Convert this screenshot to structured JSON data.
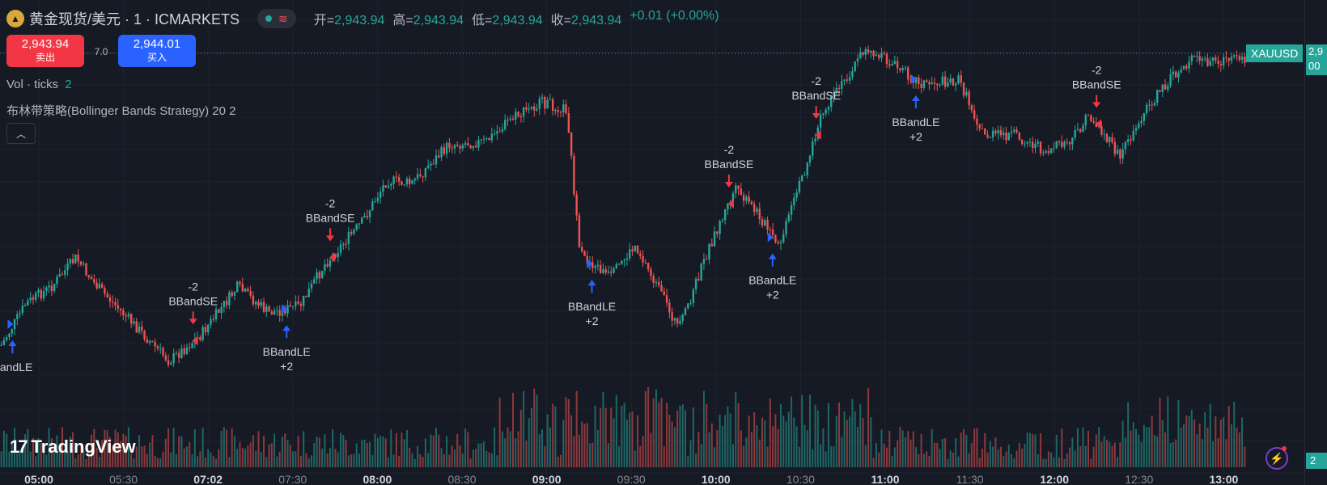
{
  "header": {
    "symbol_icon": "gold-bars-icon",
    "symbol_title": "黄金现货/美元 · 1 · ICMARKETS",
    "status_icons": [
      "market-open-dot-icon",
      "wave-icon"
    ],
    "ohlc": [
      {
        "label": "开=",
        "value": "2,943.94"
      },
      {
        "label": "高=",
        "value": "2,943.94"
      },
      {
        "label": "低=",
        "value": "2,943.94"
      },
      {
        "label": "收=",
        "value": "2,943.94"
      }
    ],
    "change": "+0.01 (+0.00%)"
  },
  "trade": {
    "sell_price": "2,943.94",
    "sell_label": "卖出",
    "spread": "7.0",
    "buy_price": "2,944.01",
    "buy_label": "买入"
  },
  "indicators": {
    "volume_label": "Vol · ticks",
    "volume_value": "2",
    "strategy_label": "布林带策略(Bollinger Bands Strategy) 20 2",
    "collapse_icon": "chevron-up-icon"
  },
  "price_axis": {
    "last_symbol": "XAUUSD",
    "last_price_fragment_1": "2,9",
    "last_price_fragment_2": "00",
    "tick_label_fragment": "2,",
    "volume_tag": "2"
  },
  "branding": {
    "logo_text": "TradingView",
    "logo_mark": "17",
    "bolt_icon": "lightning-icon"
  },
  "colors": {
    "up": "#26a69a",
    "down": "#ef5350",
    "background": "#161a25",
    "long_marker": "#2962ff",
    "short_marker": "#f23645"
  },
  "chart_data": {
    "type": "candlestick",
    "timeframe": "1",
    "x_ticks": [
      "05:00",
      "05:30",
      "07:02",
      "07:30",
      "08:00",
      "08:30",
      "09:00",
      "09:30",
      "10:00",
      "10:30",
      "11:00",
      "11:30",
      "12:00",
      "12:30",
      "13:00"
    ],
    "x_ticks_bold": [
      "05:00",
      "07:02",
      "08:00",
      "09:00",
      "10:00",
      "11:00",
      "12:00",
      "13:00"
    ],
    "price_path": [
      {
        "t": 0,
        "p": 0.07
      },
      {
        "t": 0.02,
        "p": 0.2
      },
      {
        "t": 0.04,
        "p": 0.25
      },
      {
        "t": 0.06,
        "p": 0.34
      },
      {
        "t": 0.075,
        "p": 0.26
      },
      {
        "t": 0.09,
        "p": 0.2
      },
      {
        "t": 0.11,
        "p": 0.12
      },
      {
        "t": 0.135,
        "p": 0.02
      },
      {
        "t": 0.16,
        "p": 0.1
      },
      {
        "t": 0.19,
        "p": 0.25
      },
      {
        "t": 0.215,
        "p": 0.17
      },
      {
        "t": 0.24,
        "p": 0.19
      },
      {
        "t": 0.26,
        "p": 0.32
      },
      {
        "t": 0.29,
        "p": 0.45
      },
      {
        "t": 0.31,
        "p": 0.58
      },
      {
        "t": 0.33,
        "p": 0.57
      },
      {
        "t": 0.36,
        "p": 0.69
      },
      {
        "t": 0.39,
        "p": 0.7
      },
      {
        "t": 0.41,
        "p": 0.77
      },
      {
        "t": 0.435,
        "p": 0.82
      },
      {
        "t": 0.455,
        "p": 0.8
      },
      {
        "t": 0.465,
        "p": 0.35
      },
      {
        "t": 0.49,
        "p": 0.28
      },
      {
        "t": 0.51,
        "p": 0.38
      },
      {
        "t": 0.545,
        "p": 0.12
      },
      {
        "t": 0.57,
        "p": 0.38
      },
      {
        "t": 0.59,
        "p": 0.55
      },
      {
        "t": 0.61,
        "p": 0.47
      },
      {
        "t": 0.625,
        "p": 0.37
      },
      {
        "t": 0.645,
        "p": 0.6
      },
      {
        "t": 0.66,
        "p": 0.78
      },
      {
        "t": 0.68,
        "p": 0.9
      },
      {
        "t": 0.695,
        "p": 0.99
      },
      {
        "t": 0.72,
        "p": 0.93
      },
      {
        "t": 0.74,
        "p": 0.88
      },
      {
        "t": 0.77,
        "p": 0.89
      },
      {
        "t": 0.79,
        "p": 0.72
      },
      {
        "t": 0.815,
        "p": 0.72
      },
      {
        "t": 0.84,
        "p": 0.67
      },
      {
        "t": 0.86,
        "p": 0.7
      },
      {
        "t": 0.875,
        "p": 0.78
      },
      {
        "t": 0.9,
        "p": 0.65
      },
      {
        "t": 0.915,
        "p": 0.77
      },
      {
        "t": 0.935,
        "p": 0.87
      },
      {
        "t": 0.955,
        "p": 0.95
      }
    ],
    "signals": [
      {
        "t": 0.01,
        "type": "long",
        "label": "BandLE",
        "qty": ""
      },
      {
        "t": 0.155,
        "type": "short",
        "label": "BBandSE",
        "qty": "-2"
      },
      {
        "t": 0.23,
        "type": "long",
        "label": "BBandLE",
        "qty": "+2"
      },
      {
        "t": 0.265,
        "type": "short",
        "label": "BBandSE",
        "qty": "-2"
      },
      {
        "t": 0.475,
        "type": "long",
        "label": "BBandLE",
        "qty": "+2"
      },
      {
        "t": 0.585,
        "type": "short",
        "label": "BBandSE",
        "qty": "-2"
      },
      {
        "t": 0.62,
        "type": "long",
        "label": "BBandLE",
        "qty": "+2"
      },
      {
        "t": 0.655,
        "type": "short",
        "label": "BBandSE",
        "qty": "-2"
      },
      {
        "t": 0.735,
        "type": "long",
        "label": "BBandLE",
        "qty": "+2"
      },
      {
        "t": 0.88,
        "type": "short",
        "label": "BBandSE",
        "qty": "-2"
      }
    ]
  }
}
